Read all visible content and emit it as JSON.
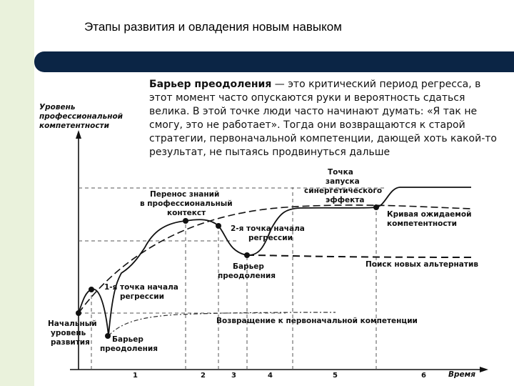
{
  "slide": {
    "title": "Этапы развития и овладения новым навыком"
  },
  "barrier": {
    "term": "Барьер преодоления",
    "description": " — это критический период регресса, в этот момент часто опускаются руки и вероятность сдаться велика. В этой точке люди часто начинают думать: «Я так не смогу, это не работает». Тогда они возвращаются к старой стратегии, первоначальной компетенции, дающей хоть какой-то результат, не пытаясь продвинуться дальше"
  },
  "diagram": {
    "y_axis_label": [
      "Уровень",
      "профессиональной",
      "компетентности"
    ],
    "x_axis_label": "Время",
    "x_ticks": [
      "1",
      "2",
      "3",
      "4",
      "5",
      "6"
    ],
    "labels": {
      "initial_level": [
        "Начальный",
        "уровень",
        "развития"
      ],
      "barrier_1": [
        "Барьер",
        "преодоления"
      ],
      "regression_1": [
        "1-я точка начала",
        "регрессии"
      ],
      "knowledge_transfer": [
        "Перенос знаний",
        "в профессиональный",
        "контекст"
      ],
      "regression_2": [
        "2-я точка начала",
        "регрессии"
      ],
      "barrier_2": [
        "Барьер",
        "преодоления"
      ],
      "synergy_point": [
        "Точка",
        "запуска",
        "синергетического",
        "эффекта"
      ],
      "expected_curve": [
        "Кривая ожидаемой",
        "компетентности"
      ],
      "new_alternatives": "Поиск новых альтернатив",
      "return_initial": "Возвращение к первоначальной компетенции"
    }
  }
}
